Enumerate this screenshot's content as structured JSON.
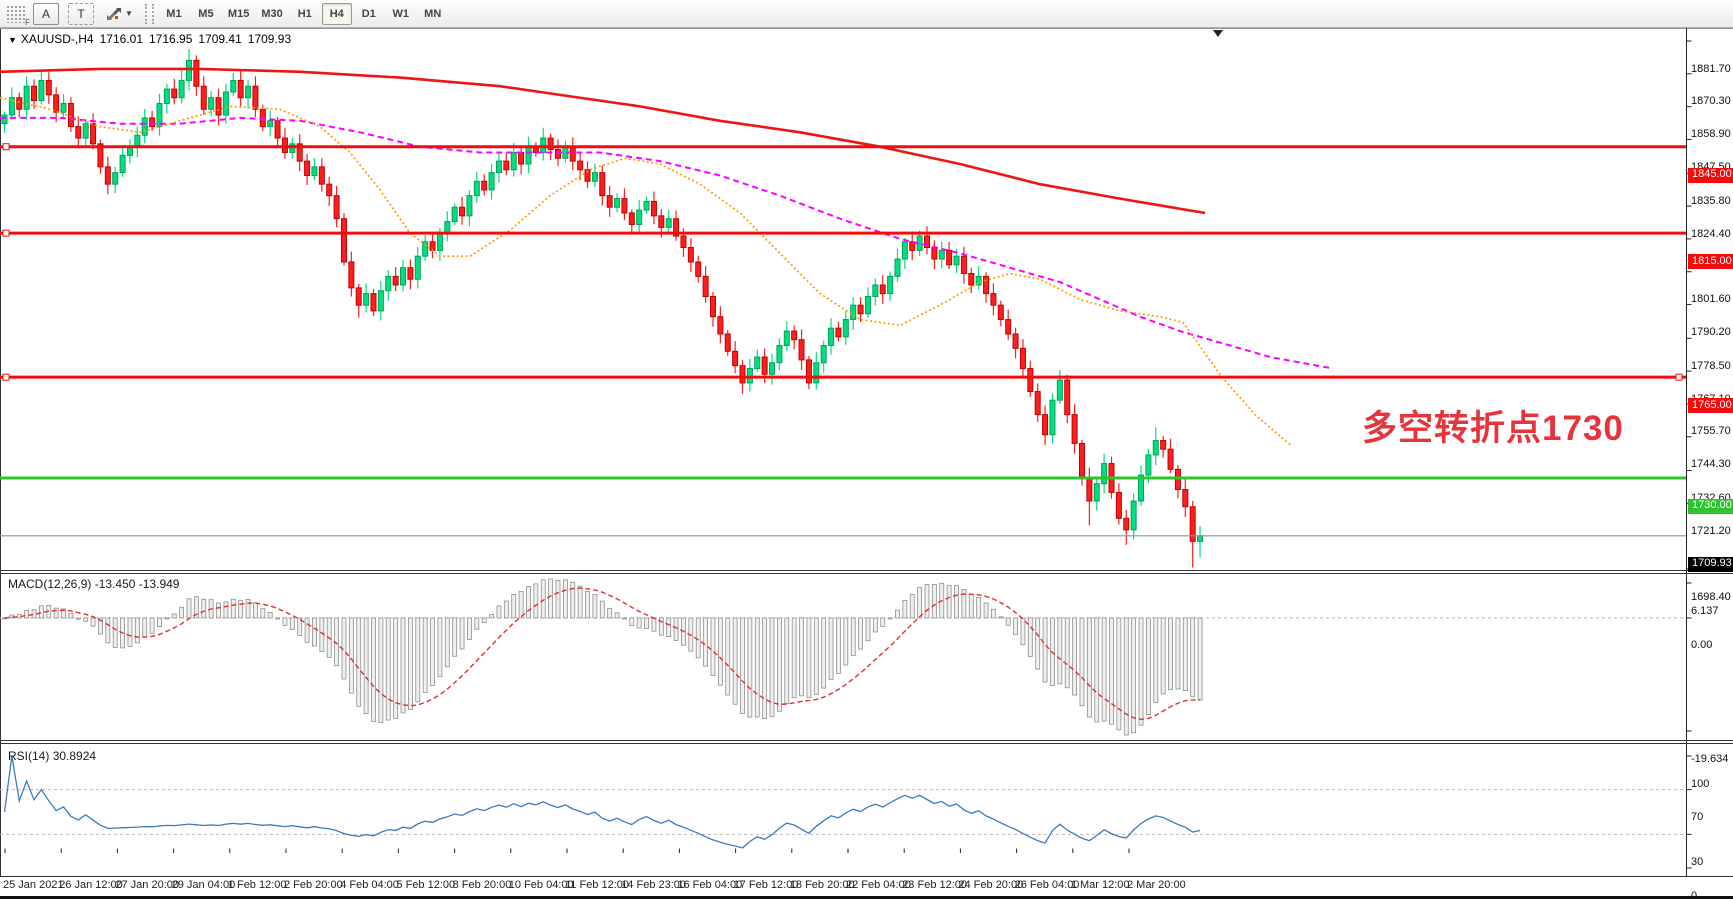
{
  "toolbar": {
    "a_tool": "A",
    "t_tool": "T",
    "timeframes": [
      {
        "label": "M1"
      },
      {
        "label": "M5"
      },
      {
        "label": "M15"
      },
      {
        "label": "M30"
      },
      {
        "label": "H1"
      },
      {
        "label": "H4"
      },
      {
        "label": "D1"
      },
      {
        "label": "W1"
      },
      {
        "label": "MN"
      }
    ],
    "active_timeframe": "H4"
  },
  "header": {
    "symbol": "XAUUSD-,H4",
    "open": "1716.01",
    "high": "1716.95",
    "low": "1709.41",
    "close": "1709.93"
  },
  "annotation": {
    "text": "多空转折点1730",
    "color": "#E8333B"
  },
  "price_axis": {
    "ticks": [
      "1881.70",
      "1870.30",
      "1858.90",
      "1847.50",
      "1835.80",
      "1824.40",
      "1813.00",
      "1801.60",
      "1790.20",
      "1778.50",
      "1767.10",
      "1755.70",
      "1744.30",
      "1732.60",
      "1721.20",
      "1698.40"
    ]
  },
  "date_axis": {
    "labels": [
      "25 Jan 2021",
      "26 Jan 12:00",
      "27 Jan 20:00",
      "29 Jan 04:00",
      "1 Feb 12:00",
      "2 Feb 20:00",
      "4 Feb 04:00",
      "5 Feb 12:00",
      "8 Feb 20:00",
      "10 Feb 04:00",
      "11 Feb 12:00",
      "14 Feb 23:00",
      "16 Feb 04:00",
      "17 Feb 12:00",
      "18 Feb 20:00",
      "22 Feb 04:00",
      "23 Feb 12:00",
      "24 Feb 20:00",
      "26 Feb 04:00",
      "1 Mar 12:00",
      "2 Mar 20:00"
    ]
  },
  "macd": {
    "label": "MACD(12,26,9)",
    "main_value": "-13.450",
    "signal_value": "-13.949",
    "axis_max": "6.137",
    "axis_zero": "0.00",
    "axis_min": "-19.634",
    "colors": {
      "histogram_stroke": "#8f8f8f",
      "histogram_fill": "#efefef",
      "signal": "#e03030"
    }
  },
  "rsi": {
    "label": "RSI(14)",
    "value": "30.8924",
    "axis": [
      "100",
      "70",
      "30",
      "0"
    ],
    "levels": [
      70,
      30
    ],
    "color": "#3b7bbf"
  },
  "chart_data": {
    "type": "candlestick",
    "symbol": "XAUUSD-",
    "timeframe": "H4",
    "ylim": [
      1698.4,
      1881.7
    ],
    "current_bid": {
      "value": 1709.93,
      "label": "1709.93",
      "line_color": "#8296a8"
    },
    "hlines": [
      {
        "value": 1845,
        "label": "1845.00",
        "color": "#f40b0b",
        "width": 3,
        "anchors": "left"
      },
      {
        "value": 1815,
        "label": "1815.00",
        "color": "#f40b0b",
        "width": 3,
        "anchors": "left"
      },
      {
        "value": 1765,
        "label": "1765.00",
        "color": "#f40b0b",
        "width": 3,
        "anchors": "both"
      },
      {
        "value": 1730,
        "label": "1730.00",
        "color": "#2dc52d",
        "width": 3,
        "anchors": "none"
      }
    ],
    "candle_colors": {
      "bull_fill": "#00df7f",
      "bull_stroke": "#00a35a",
      "bear_fill": "#fc1f1f",
      "bear_stroke": "#c40000"
    },
    "closes": [
      1856,
      1862,
      1858,
      1866,
      1861,
      1868,
      1863,
      1857,
      1860,
      1852,
      1848,
      1853,
      1846,
      1838,
      1832,
      1836,
      1842,
      1845,
      1849,
      1855,
      1852,
      1860,
      1865,
      1862,
      1868,
      1875,
      1866,
      1858,
      1862,
      1856,
      1864,
      1868,
      1862,
      1866,
      1858,
      1852,
      1854,
      1848,
      1843,
      1846,
      1840,
      1835,
      1838,
      1832,
      1828,
      1820,
      1805,
      1796,
      1790,
      1794,
      1788,
      1795,
      1800,
      1797,
      1803,
      1799,
      1807,
      1812,
      1809,
      1815,
      1819,
      1824,
      1821,
      1828,
      1833,
      1830,
      1836,
      1840,
      1837,
      1843,
      1839,
      1845,
      1843,
      1848,
      1844,
      1841,
      1845,
      1840,
      1837,
      1833,
      1836,
      1828,
      1824,
      1827,
      1822,
      1818,
      1823,
      1826,
      1821,
      1817,
      1820,
      1814,
      1810,
      1805,
      1800,
      1793,
      1786,
      1780,
      1774,
      1769,
      1763,
      1768,
      1772,
      1766,
      1770,
      1776,
      1781,
      1778,
      1771,
      1763,
      1770,
      1776,
      1782,
      1779,
      1785,
      1790,
      1787,
      1793,
      1797,
      1794,
      1800,
      1806,
      1812,
      1809,
      1814,
      1810,
      1806,
      1809,
      1804,
      1807,
      1801,
      1797,
      1800,
      1794,
      1790,
      1785,
      1780,
      1775,
      1768,
      1760,
      1752,
      1745,
      1757,
      1764,
      1752,
      1742,
      1730,
      1722,
      1728,
      1735,
      1725,
      1716,
      1712,
      1722,
      1731,
      1738,
      1743,
      1740,
      1733,
      1726,
      1720,
      1708,
      1709.93
    ],
    "first_open": 1853,
    "wick_overrides": [
      {
        "i": 5,
        "high": 1871.5
      },
      {
        "i": 24,
        "high": 1872.5
      },
      {
        "i": 25,
        "high": 1878.9
      },
      {
        "i": 31,
        "high": 1870.6
      },
      {
        "i": 48,
        "low": 1785.6
      },
      {
        "i": 100,
        "low": 1759.2
      },
      {
        "i": 109,
        "low": 1760.8
      },
      {
        "i": 147,
        "low": 1713.5
      },
      {
        "i": 152,
        "low": 1706.8
      },
      {
        "i": 156,
        "high": 1747.6
      },
      {
        "i": 161,
        "low": 1698.9
      },
      {
        "i": 162,
        "low": 1702.5
      }
    ],
    "moving_averages": [
      {
        "name": "ma-slow-red",
        "color": "#f01414",
        "width": 2.6,
        "dash": "",
        "points": [
          [
            0,
            1871
          ],
          [
            100,
            1872
          ],
          [
            200,
            1872
          ],
          [
            300,
            1871
          ],
          [
            400,
            1869
          ],
          [
            500,
            1866
          ],
          [
            560,
            1863
          ],
          [
            640,
            1859
          ],
          [
            720,
            1854
          ],
          [
            800,
            1850
          ],
          [
            880,
            1845
          ],
          [
            960,
            1839
          ],
          [
            1040,
            1832
          ],
          [
            1120,
            1827
          ],
          [
            1205,
            1822
          ]
        ]
      },
      {
        "name": "ma-mid-magenta",
        "color": "#ff00ff",
        "width": 2,
        "dash": "6 4",
        "points": [
          [
            0,
            1855
          ],
          [
            60,
            1855
          ],
          [
            120,
            1853
          ],
          [
            180,
            1853
          ],
          [
            240,
            1855
          ],
          [
            300,
            1854
          ],
          [
            360,
            1850
          ],
          [
            420,
            1845
          ],
          [
            480,
            1843
          ],
          [
            540,
            1843
          ],
          [
            600,
            1843
          ],
          [
            660,
            1840
          ],
          [
            720,
            1835
          ],
          [
            780,
            1828
          ],
          [
            840,
            1820
          ],
          [
            900,
            1813
          ],
          [
            960,
            1808
          ],
          [
            1020,
            1802
          ],
          [
            1060,
            1798
          ],
          [
            1100,
            1792
          ],
          [
            1140,
            1786
          ],
          [
            1180,
            1781
          ],
          [
            1220,
            1777
          ],
          [
            1270,
            1772
          ],
          [
            1333,
            1768
          ]
        ]
      },
      {
        "name": "ma-fast-orange",
        "color": "#ff9c00",
        "width": 1.7,
        "dash": "2 2.5",
        "points": [
          [
            0,
            1862
          ],
          [
            50,
            1858
          ],
          [
            100,
            1852
          ],
          [
            140,
            1850
          ],
          [
            180,
            1854
          ],
          [
            230,
            1859
          ],
          [
            280,
            1858
          ],
          [
            320,
            1852
          ],
          [
            350,
            1843
          ],
          [
            380,
            1830
          ],
          [
            410,
            1815
          ],
          [
            440,
            1807
          ],
          [
            470,
            1807
          ],
          [
            510,
            1816
          ],
          [
            550,
            1828
          ],
          [
            590,
            1837
          ],
          [
            625,
            1841
          ],
          [
            660,
            1839
          ],
          [
            700,
            1832
          ],
          [
            740,
            1822
          ],
          [
            780,
            1808
          ],
          [
            820,
            1794
          ],
          [
            860,
            1785
          ],
          [
            900,
            1783
          ],
          [
            940,
            1790
          ],
          [
            980,
            1798
          ],
          [
            1010,
            1801
          ],
          [
            1040,
            1799
          ],
          [
            1080,
            1792
          ],
          [
            1120,
            1788
          ],
          [
            1160,
            1786
          ],
          [
            1183,
            1784
          ],
          [
            1222,
            1765
          ],
          [
            1255,
            1752
          ],
          [
            1292,
            1741
          ]
        ]
      }
    ],
    "macd_params": {
      "fast": 12,
      "slow": 26,
      "signal": 9
    },
    "rsi_period": 14
  }
}
